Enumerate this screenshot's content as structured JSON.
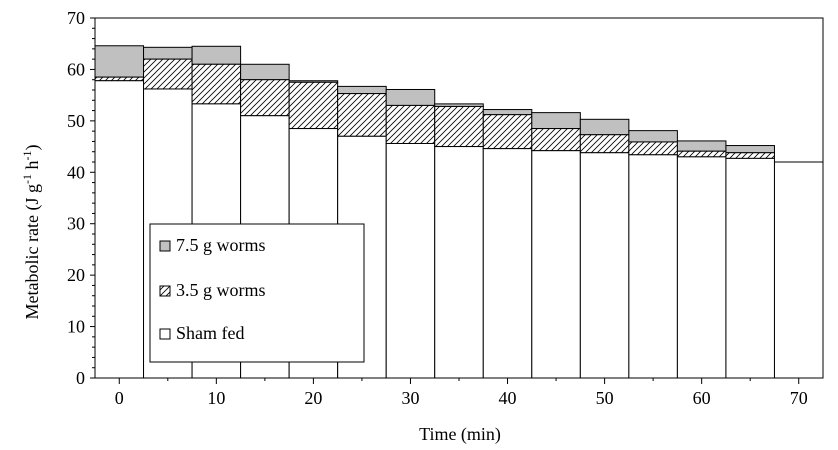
{
  "chart_data": {
    "type": "bar",
    "stacked": true,
    "xlabel": "Time (min)",
    "ylabel": "Metabolic rate (J g-1 h-1)",
    "ylabel_parts": {
      "main": "Metabolic rate (J g",
      "sup1": "-1",
      "mid": " h",
      "sup2": "-1",
      "end": ")"
    },
    "xlim": [
      -2.5,
      72.5
    ],
    "ylim": [
      0,
      70
    ],
    "x_ticks": [
      0,
      10,
      20,
      30,
      40,
      50,
      60,
      70
    ],
    "y_ticks": [
      0,
      10,
      20,
      30,
      40,
      50,
      60,
      70
    ],
    "bar_width": 5,
    "grid": false,
    "legend_position": "lower-left",
    "x": [
      0,
      5,
      10,
      15,
      20,
      25,
      30,
      35,
      40,
      45,
      50,
      55,
      60,
      65,
      70
    ],
    "series": [
      {
        "name": "Sham fed",
        "pattern": "white",
        "values": [
          57.8,
          56.2,
          53.3,
          51.0,
          48.5,
          47.0,
          45.6,
          45.0,
          44.6,
          44.2,
          43.8,
          43.4,
          43.0,
          42.7,
          42.0
        ]
      },
      {
        "name": "3.5 g worms",
        "pattern": "hatched",
        "values": [
          57.8,
          56.2,
          53.3,
          51.0,
          48.5,
          47.0,
          45.6,
          45.0,
          44.6,
          44.2,
          43.8,
          43.4,
          43.0,
          42.7,
          42.0
        ],
        "totals": [
          58.5,
          62.0,
          61.0,
          58.0,
          57.5,
          55.3,
          53.0,
          52.8,
          51.2,
          48.5,
          47.3,
          45.9,
          44.1,
          43.8,
          42.0
        ]
      },
      {
        "name": "7.5 g worms",
        "pattern": "gray",
        "totals": [
          64.6,
          64.3,
          64.5,
          61.0,
          57.8,
          56.7,
          56.1,
          53.3,
          52.2,
          51.6,
          50.3,
          48.1,
          46.1,
          45.2,
          42.0
        ]
      }
    ],
    "legend": {
      "items": [
        {
          "label": "7.5 g worms",
          "pattern": "gray"
        },
        {
          "label": "3.5 g worms",
          "pattern": "hatched"
        },
        {
          "label": "Sham fed",
          "pattern": "white"
        }
      ]
    },
    "colors": {
      "gray": "#c0c0c0",
      "stroke": "#000000",
      "background": "#ffffff"
    }
  }
}
